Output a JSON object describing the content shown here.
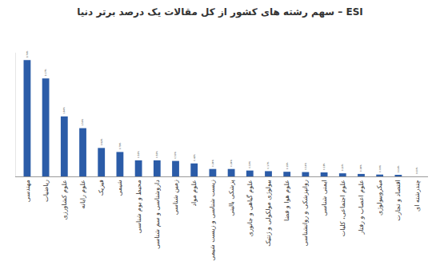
{
  "chart_data": {
    "type": "bar",
    "title": "سهم رشته های کشور از کل مقالات یک درصد برتر دنیا – ESI",
    "categories": [
      "مهندسی",
      "ریاضیات",
      "علوم کشاورزی",
      "علوم رایانه",
      "فیزیک",
      "شیمی",
      "محیط و بوم شناسی",
      "داروشناسی و سم شناسی",
      "زمین شناسی",
      "علوم مواد",
      "زیست شناسی و زیست شیمی",
      "پزشکی بالینی",
      "علوم گیاهی و جانوری",
      "بیولوژی مولکولی و ژنتیک",
      "علوم هوا و فضا",
      "روانپزشکی و روانشناسی",
      "ایمنی شناسی",
      "علوم اجتماعی، کلیات",
      "علوم اعصاب و رفتار",
      "میکروبیولوژی",
      "اقتصاد و تجارت",
      "چندرشته ای"
    ],
    "values": [
      3.76,
      3.17,
      1.94,
      1.56,
      0.92,
      0.79,
      0.52,
      0.52,
      0.5,
      0.42,
      0.24,
      0.24,
      0.19,
      0.17,
      0.15,
      0.14,
      0.13,
      0.1,
      0.08,
      0.06,
      0.04,
      0.0
    ],
    "value_labels": [
      "3.76%",
      "3.17%",
      "1.94%",
      "1.56%",
      "0.92%",
      "0.79%",
      "0.52%",
      "0.52%",
      "0.50%",
      "0.42%",
      "0.24%",
      "0.24%",
      "0.19%",
      "0.17%",
      "0.15%",
      "0.14%",
      "0.13%",
      "0.10%",
      "0.08%",
      "0.06%",
      "0.04%",
      "0.00%"
    ],
    "color": "#2b5ca8",
    "ylim": [
      0,
      4
    ],
    "grid": false,
    "data_labels": true,
    "tick_labels": "x"
  }
}
